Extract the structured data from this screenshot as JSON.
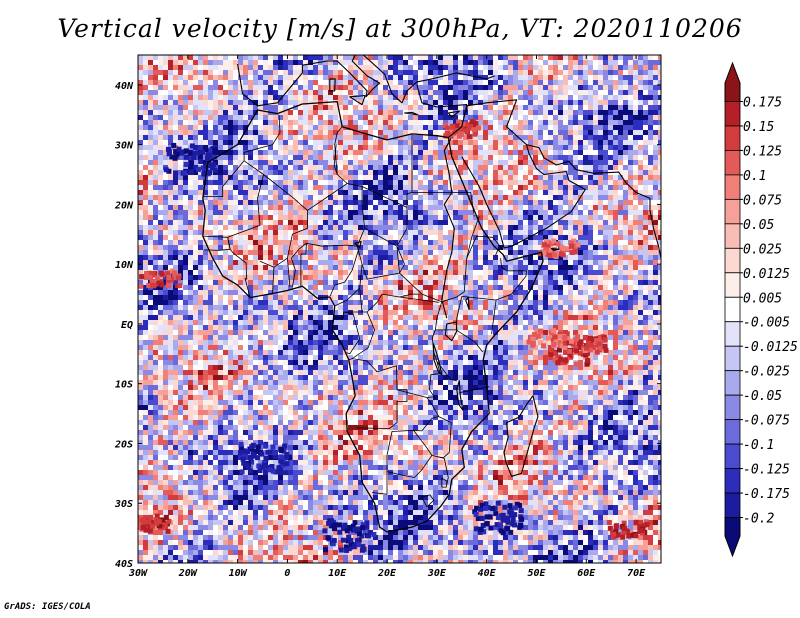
{
  "title": "Vertical velocity [m/s] at 300hPa, VT: 2020110206",
  "credit": "GrADS: IGES/COLA",
  "map": {
    "region": "Africa",
    "lon_range": [
      -30,
      75
    ],
    "lat_range": [
      -40,
      45
    ],
    "lon_labels": [
      {
        "lon": -30,
        "label": "30W"
      },
      {
        "lon": -20,
        "label": "20W"
      },
      {
        "lon": -10,
        "label": "10W"
      },
      {
        "lon": 0,
        "label": "0"
      },
      {
        "lon": 10,
        "label": "10E"
      },
      {
        "lon": 20,
        "label": "20E"
      },
      {
        "lon": 30,
        "label": "30E"
      },
      {
        "lon": 40,
        "label": "40E"
      },
      {
        "lon": 50,
        "label": "50E"
      },
      {
        "lon": 60,
        "label": "60E"
      },
      {
        "lon": 70,
        "label": "70E"
      }
    ],
    "lat_labels": [
      {
        "lat": 40,
        "label": "40N"
      },
      {
        "lat": 30,
        "label": "30N"
      },
      {
        "lat": 20,
        "label": "20N"
      },
      {
        "lat": 10,
        "label": "10N"
      },
      {
        "lat": 0,
        "label": "EQ"
      },
      {
        "lat": -10,
        "label": "10S"
      },
      {
        "lat": -20,
        "label": "20S"
      },
      {
        "lat": -30,
        "label": "30S"
      },
      {
        "lat": -40,
        "label": "40S"
      }
    ]
  },
  "colorbar": {
    "levels": [
      "0.175",
      "0.15",
      "0.125",
      "0.1",
      "0.075",
      "0.05",
      "0.025",
      "0.0125",
      "0.005",
      "-0.005",
      "-0.0125",
      "-0.025",
      "-0.05",
      "-0.075",
      "-0.1",
      "-0.125",
      "-0.175",
      "-0.2"
    ],
    "colors": [
      "#8c1419",
      "#b41f28",
      "#d23c3f",
      "#e35a58",
      "#ef7f77",
      "#f5a199",
      "#f8bdb5",
      "#fbd8d2",
      "#fdeeea",
      "#ffffff",
      "#e2e2fa",
      "#c6c6f5",
      "#a9a9ee",
      "#8a8ae6",
      "#6b6bdc",
      "#4b4bd0",
      "#2d2dbd",
      "#1c1ca0",
      "#0b0b78"
    ]
  }
}
